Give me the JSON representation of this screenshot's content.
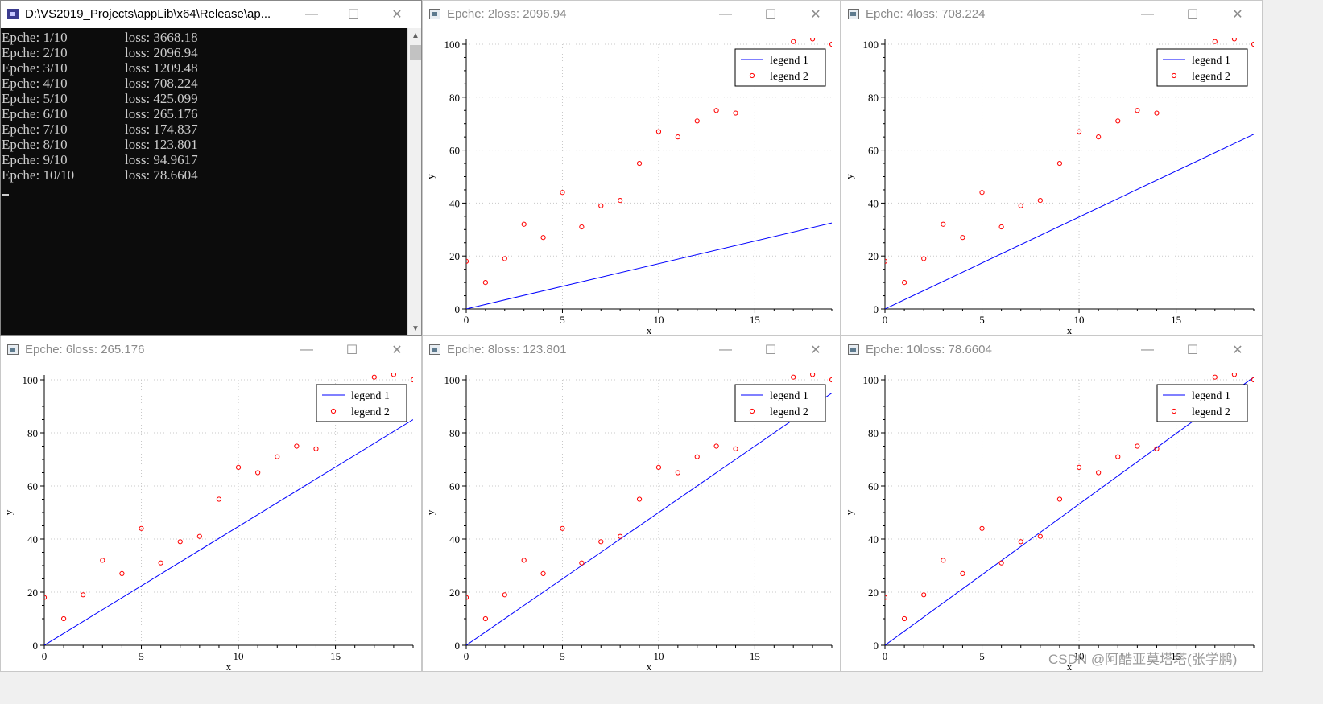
{
  "console": {
    "title": "D:\\VS2019_Projects\\appLib\\x64\\Release\\ap...",
    "icon": "console-app-icon",
    "lines": [
      {
        "epoch": "Epche: 1/10",
        "loss": "loss: 3668.18"
      },
      {
        "epoch": "Epche: 2/10",
        "loss": "loss: 2096.94"
      },
      {
        "epoch": "Epche: 3/10",
        "loss": "loss: 1209.48"
      },
      {
        "epoch": "Epche: 4/10",
        "loss": "loss: 708.224"
      },
      {
        "epoch": "Epche: 5/10",
        "loss": "loss: 425.099"
      },
      {
        "epoch": "Epche: 6/10",
        "loss": "loss: 265.176"
      },
      {
        "epoch": "Epche: 7/10",
        "loss": "loss: 174.837"
      },
      {
        "epoch": "Epche: 8/10",
        "loss": "loss: 123.801"
      },
      {
        "epoch": "Epche: 9/10",
        "loss": "loss: 94.9617"
      },
      {
        "epoch": "Epche: 10/10",
        "loss": "loss: 78.6604"
      }
    ]
  },
  "window_controls": {
    "minimize": "—",
    "maximize": "☐",
    "close": "✕"
  },
  "plot_windows": [
    {
      "title": "Epche: 2loss: 2096.94"
    },
    {
      "title": "Epche: 4loss: 708.224"
    },
    {
      "title": "Epche: 6loss: 265.176"
    },
    {
      "title": "Epche: 8loss: 123.801"
    },
    {
      "title": "Epche: 10loss: 78.6604"
    }
  ],
  "colors": {
    "line": "#0000ff",
    "points": "#ff0000",
    "grid": "#c8c8c8"
  },
  "chart_data": [
    {
      "type": "line",
      "title": "Epche: 2loss: 2096.94",
      "xlabel": "x",
      "ylabel": "y",
      "xlim": [
        0,
        19
      ],
      "ylim": [
        0,
        100
      ],
      "xticks": [
        0,
        5,
        10,
        15
      ],
      "yticks": [
        0,
        20,
        40,
        60,
        80,
        100
      ],
      "grid": true,
      "legend_position": "top-right",
      "series": [
        {
          "name": "legend 1",
          "kind": "line",
          "x": [
            0,
            19
          ],
          "y": [
            0,
            32.5
          ]
        },
        {
          "name": "legend 2",
          "kind": "scatter",
          "x": [
            0,
            1,
            2,
            3,
            4,
            5,
            6,
            7,
            8,
            9,
            10,
            11,
            12,
            13,
            14,
            17,
            18,
            19
          ],
          "y": [
            18,
            10,
            19,
            32,
            27,
            44,
            31,
            39,
            41,
            55,
            67,
            65,
            71,
            75,
            74,
            101,
            102,
            100
          ]
        }
      ]
    },
    {
      "type": "line",
      "title": "Epche: 4loss: 708.224",
      "xlabel": "x",
      "ylabel": "y",
      "xlim": [
        0,
        19
      ],
      "ylim": [
        0,
        100
      ],
      "xticks": [
        0,
        5,
        10,
        15
      ],
      "yticks": [
        0,
        20,
        40,
        60,
        80,
        100
      ],
      "grid": true,
      "legend_position": "top-right",
      "series": [
        {
          "name": "legend 1",
          "kind": "line",
          "x": [
            0,
            19
          ],
          "y": [
            0,
            66
          ]
        },
        {
          "name": "legend 2",
          "kind": "scatter",
          "x": [
            0,
            1,
            2,
            3,
            4,
            5,
            6,
            7,
            8,
            9,
            10,
            11,
            12,
            13,
            14,
            17,
            18,
            19
          ],
          "y": [
            18,
            10,
            19,
            32,
            27,
            44,
            31,
            39,
            41,
            55,
            67,
            65,
            71,
            75,
            74,
            101,
            102,
            100
          ]
        }
      ]
    },
    {
      "type": "line",
      "title": "Epche: 6loss: 265.176",
      "xlabel": "x",
      "ylabel": "y",
      "xlim": [
        0,
        19
      ],
      "ylim": [
        0,
        100
      ],
      "xticks": [
        0,
        5,
        10,
        15
      ],
      "yticks": [
        0,
        20,
        40,
        60,
        80,
        100
      ],
      "grid": true,
      "legend_position": "top-right",
      "series": [
        {
          "name": "legend 1",
          "kind": "line",
          "x": [
            0,
            19
          ],
          "y": [
            0,
            85
          ]
        },
        {
          "name": "legend 2",
          "kind": "scatter",
          "x": [
            0,
            1,
            2,
            3,
            4,
            5,
            6,
            7,
            8,
            9,
            10,
            11,
            12,
            13,
            14,
            17,
            18,
            19
          ],
          "y": [
            18,
            10,
            19,
            32,
            27,
            44,
            31,
            39,
            41,
            55,
            67,
            65,
            71,
            75,
            74,
            101,
            102,
            100
          ]
        }
      ]
    },
    {
      "type": "line",
      "title": "Epche: 8loss: 123.801",
      "xlabel": "x",
      "ylabel": "y",
      "xlim": [
        0,
        19
      ],
      "ylim": [
        0,
        100
      ],
      "xticks": [
        0,
        5,
        10,
        15
      ],
      "yticks": [
        0,
        20,
        40,
        60,
        80,
        100
      ],
      "grid": true,
      "legend_position": "top-right",
      "series": [
        {
          "name": "legend 1",
          "kind": "line",
          "x": [
            0,
            19
          ],
          "y": [
            0,
            95
          ]
        },
        {
          "name": "legend 2",
          "kind": "scatter",
          "x": [
            0,
            1,
            2,
            3,
            4,
            5,
            6,
            7,
            8,
            9,
            10,
            11,
            12,
            13,
            14,
            17,
            18,
            19
          ],
          "y": [
            18,
            10,
            19,
            32,
            27,
            44,
            31,
            39,
            41,
            55,
            67,
            65,
            71,
            75,
            74,
            101,
            102,
            100
          ]
        }
      ]
    },
    {
      "type": "line",
      "title": "Epche: 10loss: 78.6604",
      "xlabel": "x",
      "ylabel": "y",
      "xlim": [
        0,
        19
      ],
      "ylim": [
        0,
        100
      ],
      "xticks": [
        0,
        5,
        10,
        15
      ],
      "yticks": [
        0,
        20,
        40,
        60,
        80,
        100
      ],
      "grid": true,
      "legend_position": "top-right",
      "series": [
        {
          "name": "legend 1",
          "kind": "line",
          "x": [
            0,
            19
          ],
          "y": [
            0,
            101
          ]
        },
        {
          "name": "legend 2",
          "kind": "scatter",
          "x": [
            0,
            1,
            2,
            3,
            4,
            5,
            6,
            7,
            8,
            9,
            10,
            11,
            12,
            13,
            14,
            17,
            18,
            19
          ],
          "y": [
            18,
            10,
            19,
            32,
            27,
            44,
            31,
            39,
            41,
            55,
            67,
            65,
            71,
            75,
            74,
            101,
            102,
            100
          ]
        }
      ]
    }
  ],
  "watermark": "CSDN @阿酷亚莫塔塔(张学鹏)"
}
